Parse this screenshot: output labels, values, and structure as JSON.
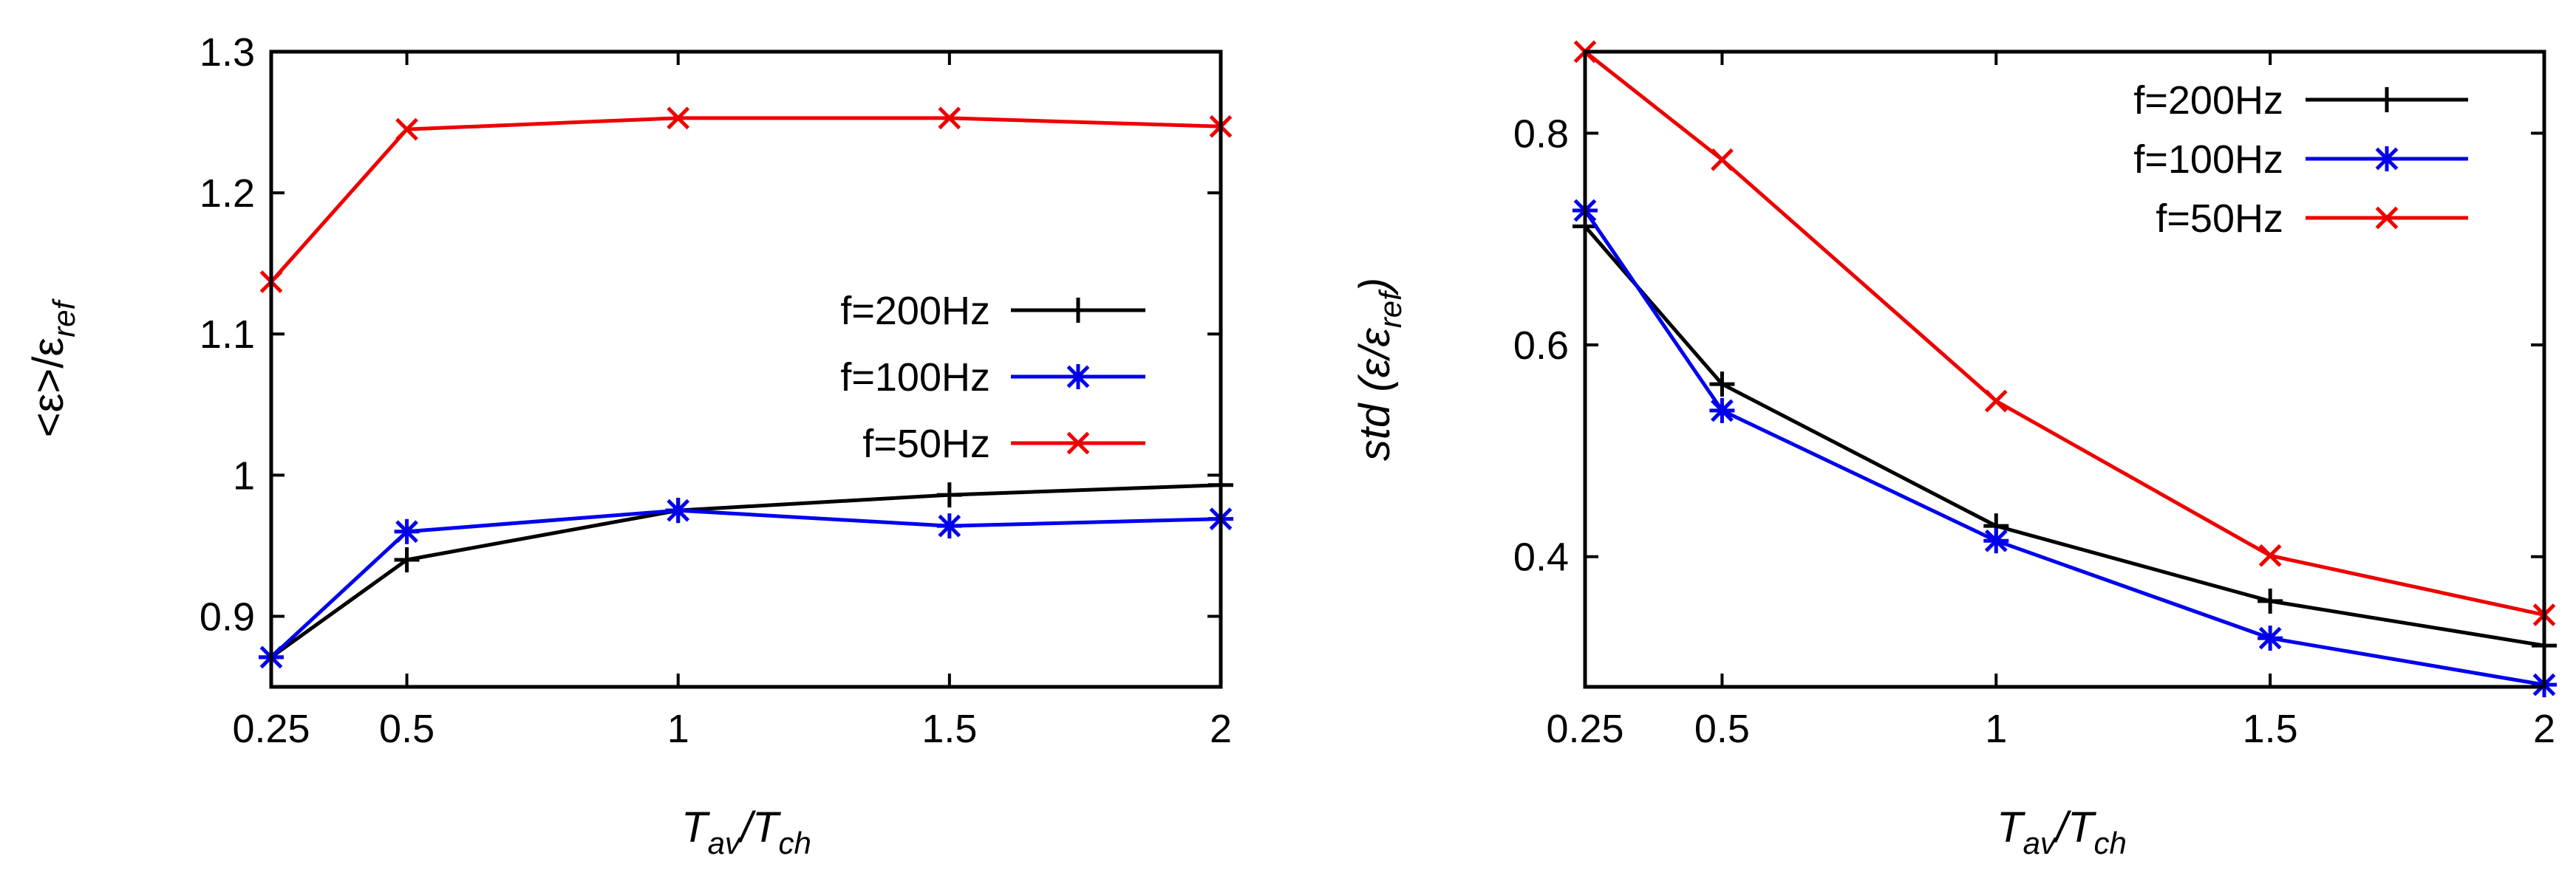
{
  "chart_data": [
    {
      "type": "line",
      "title": "",
      "xlabel": "Tav/Tch",
      "ylabel": "<ε>/εref",
      "ylabel_parts": {
        "open": "<",
        "eps": "ε",
        "close": ">/",
        "eps2": "ε",
        "sub": "ref"
      },
      "xlabel_parts": {
        "t1": "T",
        "sub1": "av",
        "slash": "/",
        "t2": "T",
        "sub2": "ch"
      },
      "x": [
        0.25,
        0.5,
        1,
        1.5,
        2
      ],
      "xticks": [
        0.25,
        0.5,
        1,
        1.5,
        2
      ],
      "xtick_labels": [
        "0.25",
        "0.5",
        "1",
        "1.5",
        "2"
      ],
      "xlim": [
        0.25,
        2
      ],
      "ylim": [
        0.85,
        1.3
      ],
      "yticks": [
        0.9,
        1,
        1.1,
        1.2,
        1.3
      ],
      "ytick_labels": [
        "0.9",
        "1",
        "1.1",
        "1.2",
        "1.3"
      ],
      "legend_position": "center-right",
      "series": [
        {
          "name": "f=200Hz",
          "color": "#000000",
          "marker": "plus",
          "values": [
            0.871,
            0.94,
            0.975,
            0.986,
            0.993
          ]
        },
        {
          "name": "f=100Hz",
          "color": "#0000ee",
          "marker": "star",
          "values": [
            0.871,
            0.96,
            0.975,
            0.964,
            0.969
          ]
        },
        {
          "name": "f=50Hz",
          "color": "#ee0000",
          "marker": "cross",
          "values": [
            1.137,
            1.245,
            1.253,
            1.253,
            1.247
          ]
        }
      ]
    },
    {
      "type": "line",
      "title": "",
      "xlabel": "Tav/Tch",
      "ylabel": "std (ε/εref)",
      "ylabel_parts": {
        "std": "std",
        "open": " (",
        "eps": "ε",
        "slash": "/",
        "eps2": "ε",
        "sub": "ref",
        "close": ")"
      },
      "xlabel_parts": {
        "t1": "T",
        "sub1": "av",
        "slash": "/",
        "t2": "T",
        "sub2": "ch"
      },
      "x": [
        0.25,
        0.5,
        1,
        1.5,
        2
      ],
      "xticks": [
        0.25,
        0.5,
        1,
        1.5,
        2
      ],
      "xtick_labels": [
        "0.25",
        "0.5",
        "1",
        "1.5",
        "2"
      ],
      "xlim": [
        0.25,
        2
      ],
      "ylim": [
        0.277,
        0.877
      ],
      "yticks": [
        0.4,
        0.6,
        0.8
      ],
      "ytick_labels": [
        "0.4",
        "0.6",
        "0.8"
      ],
      "legend_position": "top-right",
      "series": [
        {
          "name": "f=200Hz",
          "color": "#000000",
          "marker": "plus",
          "values": [
            0.712,
            0.563,
            0.429,
            0.358,
            0.316
          ]
        },
        {
          "name": "f=100Hz",
          "color": "#0000ee",
          "marker": "star",
          "values": [
            0.727,
            0.538,
            0.415,
            0.323,
            0.279
          ]
        },
        {
          "name": "f=50Hz",
          "color": "#ee0000",
          "marker": "cross",
          "values": [
            0.877,
            0.775,
            0.547,
            0.401,
            0.345
          ]
        }
      ]
    }
  ]
}
